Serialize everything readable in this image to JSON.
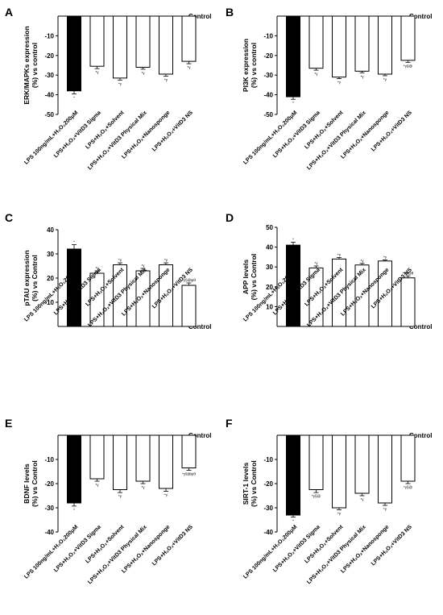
{
  "control_label": "Control",
  "categories": [
    "LPS 100ng/mL+H₂O₂200μM",
    "LPS+H₂O₂+VitD3 Sigma",
    "LPS+H₂O₂+Solvent",
    "LPS+H₂O₂+VitD3 Physical Mix",
    "LPS+H₂O₂+Nanosponge",
    "LPS+H₂O₂+VitD3 NS"
  ],
  "colors": {
    "first_bar": "#000000",
    "other_bars": "#ffffff",
    "stroke": "#000000"
  },
  "chart_data": [
    {
      "type": "bar",
      "panel": "A",
      "ylabel_lines": [
        "ERK/MAPKs expression",
        "(%) vs control"
      ],
      "ylim": [
        -50,
        0
      ],
      "yticks": [
        -10,
        -20,
        -30,
        -40,
        -50
      ],
      "values": [
        -38,
        -25.5,
        -31.5,
        -26,
        -29.5,
        -23
      ],
      "errors": [
        1.5,
        1.2,
        1.0,
        1.0,
        1.0,
        1.2
      ],
      "sig": [
        "*",
        "*γ",
        "*γ",
        "*γ",
        "*γ",
        "*γ"
      ]
    },
    {
      "type": "bar",
      "panel": "B",
      "ylabel_lines": [
        "PI3K expression",
        "(%) vs control"
      ],
      "ylim": [
        -50,
        0
      ],
      "yticks": [
        -10,
        -20,
        -30,
        -40,
        -50
      ],
      "values": [
        -41,
        -26.5,
        -31,
        -28,
        -29.5,
        -22.5
      ],
      "errors": [
        1.3,
        1.0,
        0.8,
        0.8,
        0.8,
        1.0
      ],
      "sig": [
        "*",
        "*γ",
        "*γ",
        "*γ",
        "*γ",
        "*γ§@"
      ]
    },
    {
      "type": "bar",
      "panel": "C",
      "ylabel_lines": [
        "pTAU expression",
        "(%) vs Control"
      ],
      "ylim": [
        0,
        40
      ],
      "yticks": [
        10,
        20,
        30,
        40
      ],
      "values": [
        32,
        22,
        25.5,
        23,
        25.5,
        17
      ],
      "errors": [
        1.8,
        1.0,
        0.8,
        1.0,
        0.8,
        1.0
      ],
      "sig": [
        "*",
        "*γ",
        "*γ",
        "*γ",
        "*γ",
        "*γ§@ψθ"
      ]
    },
    {
      "type": "bar",
      "panel": "D",
      "ylabel_lines": [
        "APP levels",
        "(%) vs Control"
      ],
      "ylim": [
        0,
        50
      ],
      "yticks": [
        10,
        20,
        30,
        40,
        50
      ],
      "values": [
        41,
        29.5,
        34,
        31,
        33,
        24.5
      ],
      "errors": [
        1.5,
        1.0,
        0.8,
        0.8,
        0.5,
        1.0
      ],
      "sig": [
        "*",
        "*γ",
        "*γ",
        "*γ",
        "*γ",
        "*γ§@θ"
      ]
    },
    {
      "type": "bar",
      "panel": "E",
      "ylabel_lines": [
        "BDNF levels",
        "(%) vs Control"
      ],
      "ylim": [
        -40,
        0
      ],
      "yticks": [
        -10,
        -20,
        -30,
        -40
      ],
      "values": [
        -28,
        -18,
        -22.5,
        -19,
        -22,
        -13.5
      ],
      "errors": [
        1.3,
        1.0,
        1.2,
        1.0,
        1.2,
        1.0
      ],
      "sig": [
        "*",
        "*γ",
        "*γ",
        "*γ",
        "*γ",
        "*γ§@ψθ"
      ]
    },
    {
      "type": "bar",
      "panel": "F",
      "ylabel_lines": [
        "SIRT-1 levels",
        "(%) vs Control"
      ],
      "ylim": [
        -40,
        0
      ],
      "yticks": [
        -10,
        -20,
        -30,
        -40
      ],
      "values": [
        -33,
        -22.5,
        -30,
        -24,
        -28,
        -19
      ],
      "errors": [
        0.8,
        1.2,
        0.8,
        1.0,
        1.0,
        1.0
      ],
      "sig": [
        "*",
        "*γ§@",
        "*γ",
        "*γ",
        "*γ",
        "*γ§@"
      ]
    }
  ]
}
